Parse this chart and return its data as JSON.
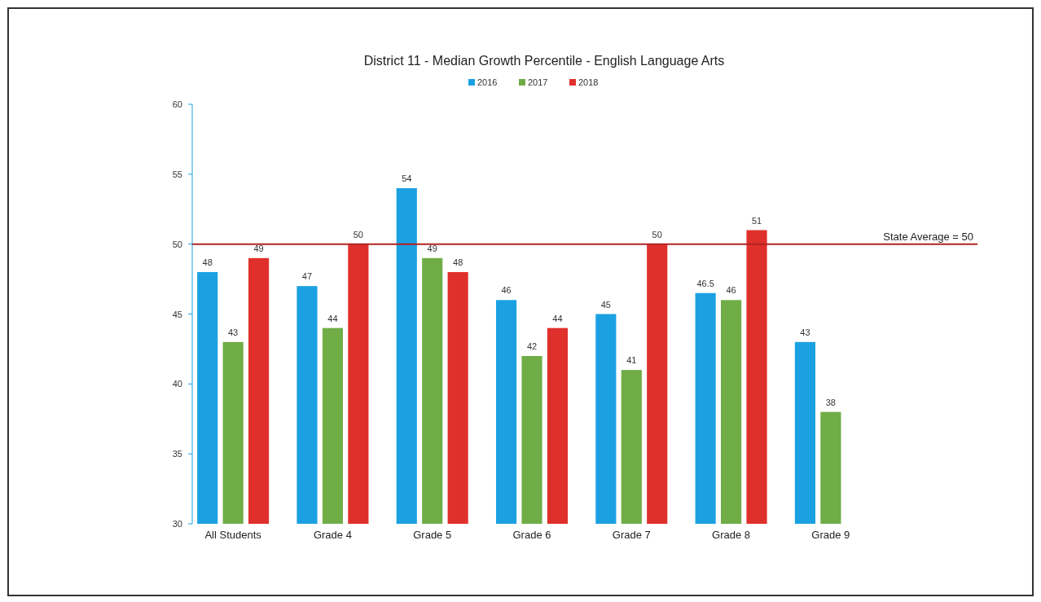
{
  "chart_data": {
    "type": "bar",
    "title": "District 11  -  Median Growth Percentile  -  English Language Arts",
    "categories": [
      "All Students",
      "Grade 4",
      "Grade 5",
      "Grade 6",
      "Grade 7",
      "Grade 8",
      "Grade 9"
    ],
    "series": [
      {
        "name": "2016",
        "color": "#1ba1e2",
        "values": [
          48,
          47,
          54,
          46,
          45,
          46.5,
          43
        ]
      },
      {
        "name": "2017",
        "color": "#70ad47",
        "values": [
          43,
          44,
          49,
          42,
          41,
          46,
          38
        ]
      },
      {
        "name": "2018",
        "color": "#e0302c",
        "values": [
          49,
          50,
          48,
          44,
          50,
          51,
          null
        ]
      }
    ],
    "ylim": [
      30,
      60
    ],
    "yticks": [
      30,
      35,
      40,
      45,
      50,
      55,
      60
    ],
    "grid": false,
    "legend": "top",
    "data_labels": true,
    "ref_lines": [
      {
        "axis": "y",
        "value": 50,
        "label": "State Average = 50",
        "color": "#b22222"
      }
    ]
  }
}
